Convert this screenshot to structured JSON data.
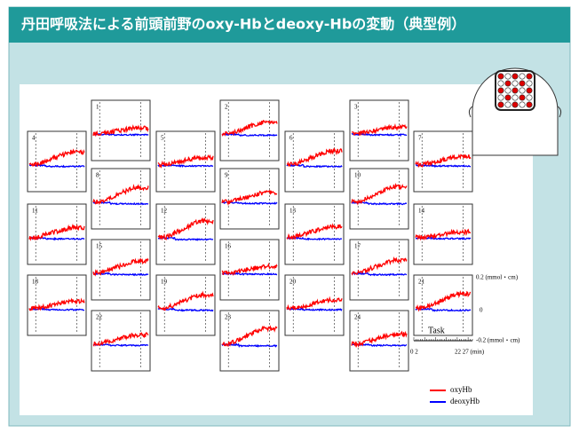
{
  "title": "丹田呼吸法による前頭前野のoxy-Hbとdeoxy-Hbの変動（典型例）",
  "panels": [
    {
      "label": "1"
    },
    {
      "label": "2"
    },
    {
      "label": "3"
    },
    {
      "label": "4"
    },
    {
      "label": "5"
    },
    {
      "label": "6"
    },
    {
      "label": "7"
    },
    {
      "label": "8"
    },
    {
      "label": "9"
    },
    {
      "label": "10"
    },
    {
      "label": "11"
    },
    {
      "label": "12"
    },
    {
      "label": "13"
    },
    {
      "label": "14"
    },
    {
      "label": "15"
    },
    {
      "label": "16"
    },
    {
      "label": "17"
    },
    {
      "label": "18"
    },
    {
      "label": "19"
    },
    {
      "label": "20"
    },
    {
      "label": "21"
    },
    {
      "label": "22"
    },
    {
      "label": "23"
    },
    {
      "label": "24"
    }
  ],
  "scale": {
    "top": "0.2 (mmol・cm)",
    "zero": "0",
    "bottom": "-0.2 (mmol・cm)",
    "task": "Task",
    "start": "0 2",
    "end": "22 27 (min)"
  },
  "legend": [
    {
      "name": "oxyHb",
      "color": "#ff0000"
    },
    {
      "name": "deoxyHb",
      "color": "#0000ff"
    }
  ]
}
